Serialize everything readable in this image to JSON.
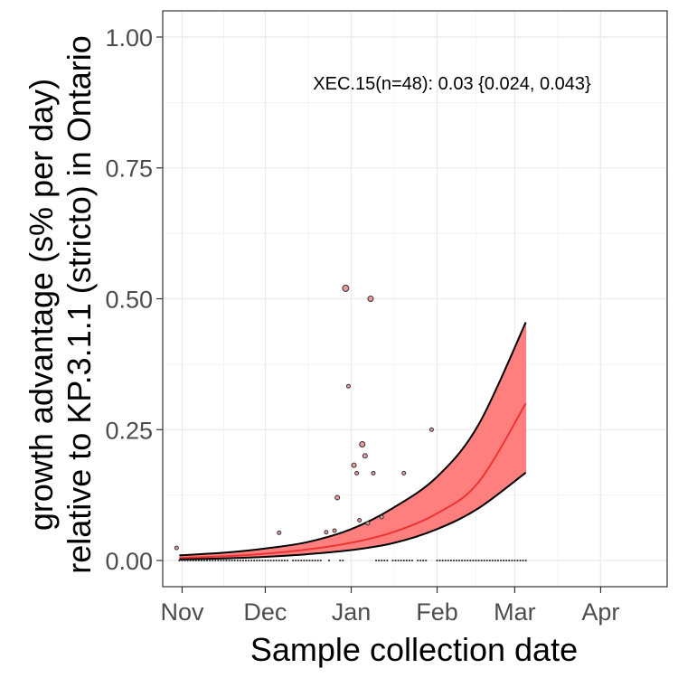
{
  "chart_data": {
    "type": "line",
    "title": "",
    "xlabel": "Sample collection date",
    "ylabel_line1": "growth advantage (s% per day)",
    "ylabel_line2": "relative to KP.3.1.1 (stricto) in Ontario",
    "annotation": "XEC.15(n=48): 0.03 {0.024, 0.043}",
    "xlim": [
      "2024-10-25",
      "2025-04-25"
    ],
    "ylim": [
      -0.05,
      1.05
    ],
    "grid": true,
    "x_ticks": [
      {
        "label": "Nov",
        "date": "2024-11-01"
      },
      {
        "label": "Dec",
        "date": "2024-12-01"
      },
      {
        "label": "Jan",
        "date": "2025-01-01"
      },
      {
        "label": "Feb",
        "date": "2025-02-01"
      },
      {
        "label": "Mar",
        "date": "2025-03-01"
      },
      {
        "label": "Apr",
        "date": "2025-04-01"
      }
    ],
    "y_ticks": [
      {
        "label": "0.00",
        "value": 0.0
      },
      {
        "label": "0.25",
        "value": 0.25
      },
      {
        "label": "0.50",
        "value": 0.5
      },
      {
        "label": "0.75",
        "value": 0.75
      },
      {
        "label": "1.00",
        "value": 1.0
      }
    ],
    "fit": {
      "x": [
        "2024-10-31",
        "2024-11-16",
        "2024-12-01",
        "2024-12-16",
        "2025-01-01",
        "2025-01-16",
        "2025-02-01",
        "2025-02-16",
        "2025-03-05"
      ],
      "mean": [
        0.005,
        0.008,
        0.013,
        0.021,
        0.034,
        0.054,
        0.09,
        0.15,
        0.3
      ],
      "lower": [
        0.002,
        0.004,
        0.007,
        0.012,
        0.02,
        0.033,
        0.06,
        0.1,
        0.168
      ],
      "upper": [
        0.01,
        0.015,
        0.023,
        0.035,
        0.06,
        0.1,
        0.16,
        0.26,
        0.455
      ],
      "ribbon_color": "#ff7f7f",
      "mean_color": "#ee3333",
      "bound_color": "#000000"
    },
    "points": [
      {
        "date": "2024-10-30",
        "y": 0.024,
        "size": 2
      },
      {
        "date": "2024-12-06",
        "y": 0.053,
        "size": 2
      },
      {
        "date": "2024-12-23",
        "y": 0.054,
        "size": 2
      },
      {
        "date": "2024-12-26",
        "y": 0.057,
        "size": 2
      },
      {
        "date": "2024-12-27",
        "y": 0.12,
        "size": 2.5
      },
      {
        "date": "2024-12-30",
        "y": 0.52,
        "size": 3.5
      },
      {
        "date": "2024-12-31",
        "y": 0.333,
        "size": 2
      },
      {
        "date": "2025-01-02",
        "y": 0.182,
        "size": 2.5
      },
      {
        "date": "2025-01-03",
        "y": 0.167,
        "size": 2
      },
      {
        "date": "2025-01-04",
        "y": 0.077,
        "size": 2
      },
      {
        "date": "2025-01-05",
        "y": 0.222,
        "size": 3
      },
      {
        "date": "2025-01-06",
        "y": 0.2,
        "size": 2.5
      },
      {
        "date": "2025-01-07",
        "y": 0.071,
        "size": 2
      },
      {
        "date": "2025-01-08",
        "y": 0.5,
        "size": 3
      },
      {
        "date": "2025-01-09",
        "y": 0.167,
        "size": 2
      },
      {
        "date": "2025-01-12",
        "y": 0.083,
        "size": 2
      },
      {
        "date": "2025-01-20",
        "y": 0.167,
        "size": 2
      },
      {
        "date": "2025-01-30",
        "y": 0.25,
        "size": 2
      }
    ],
    "zero_points": {
      "y": 0,
      "ranges": [
        [
          "2024-10-31",
          "2024-12-09"
        ],
        [
          "2024-12-11",
          "2024-12-21"
        ],
        [
          "2024-12-24",
          "2024-12-24"
        ],
        [
          "2024-12-28",
          "2024-12-29"
        ],
        [
          "2025-01-10",
          "2025-01-14"
        ],
        [
          "2025-01-16",
          "2025-01-23"
        ],
        [
          "2025-01-25",
          "2025-01-28"
        ],
        [
          "2025-02-01",
          "2025-03-05"
        ]
      ],
      "color": "#333333"
    },
    "point_fill": "#e89a9a",
    "point_stroke": "#333333"
  }
}
